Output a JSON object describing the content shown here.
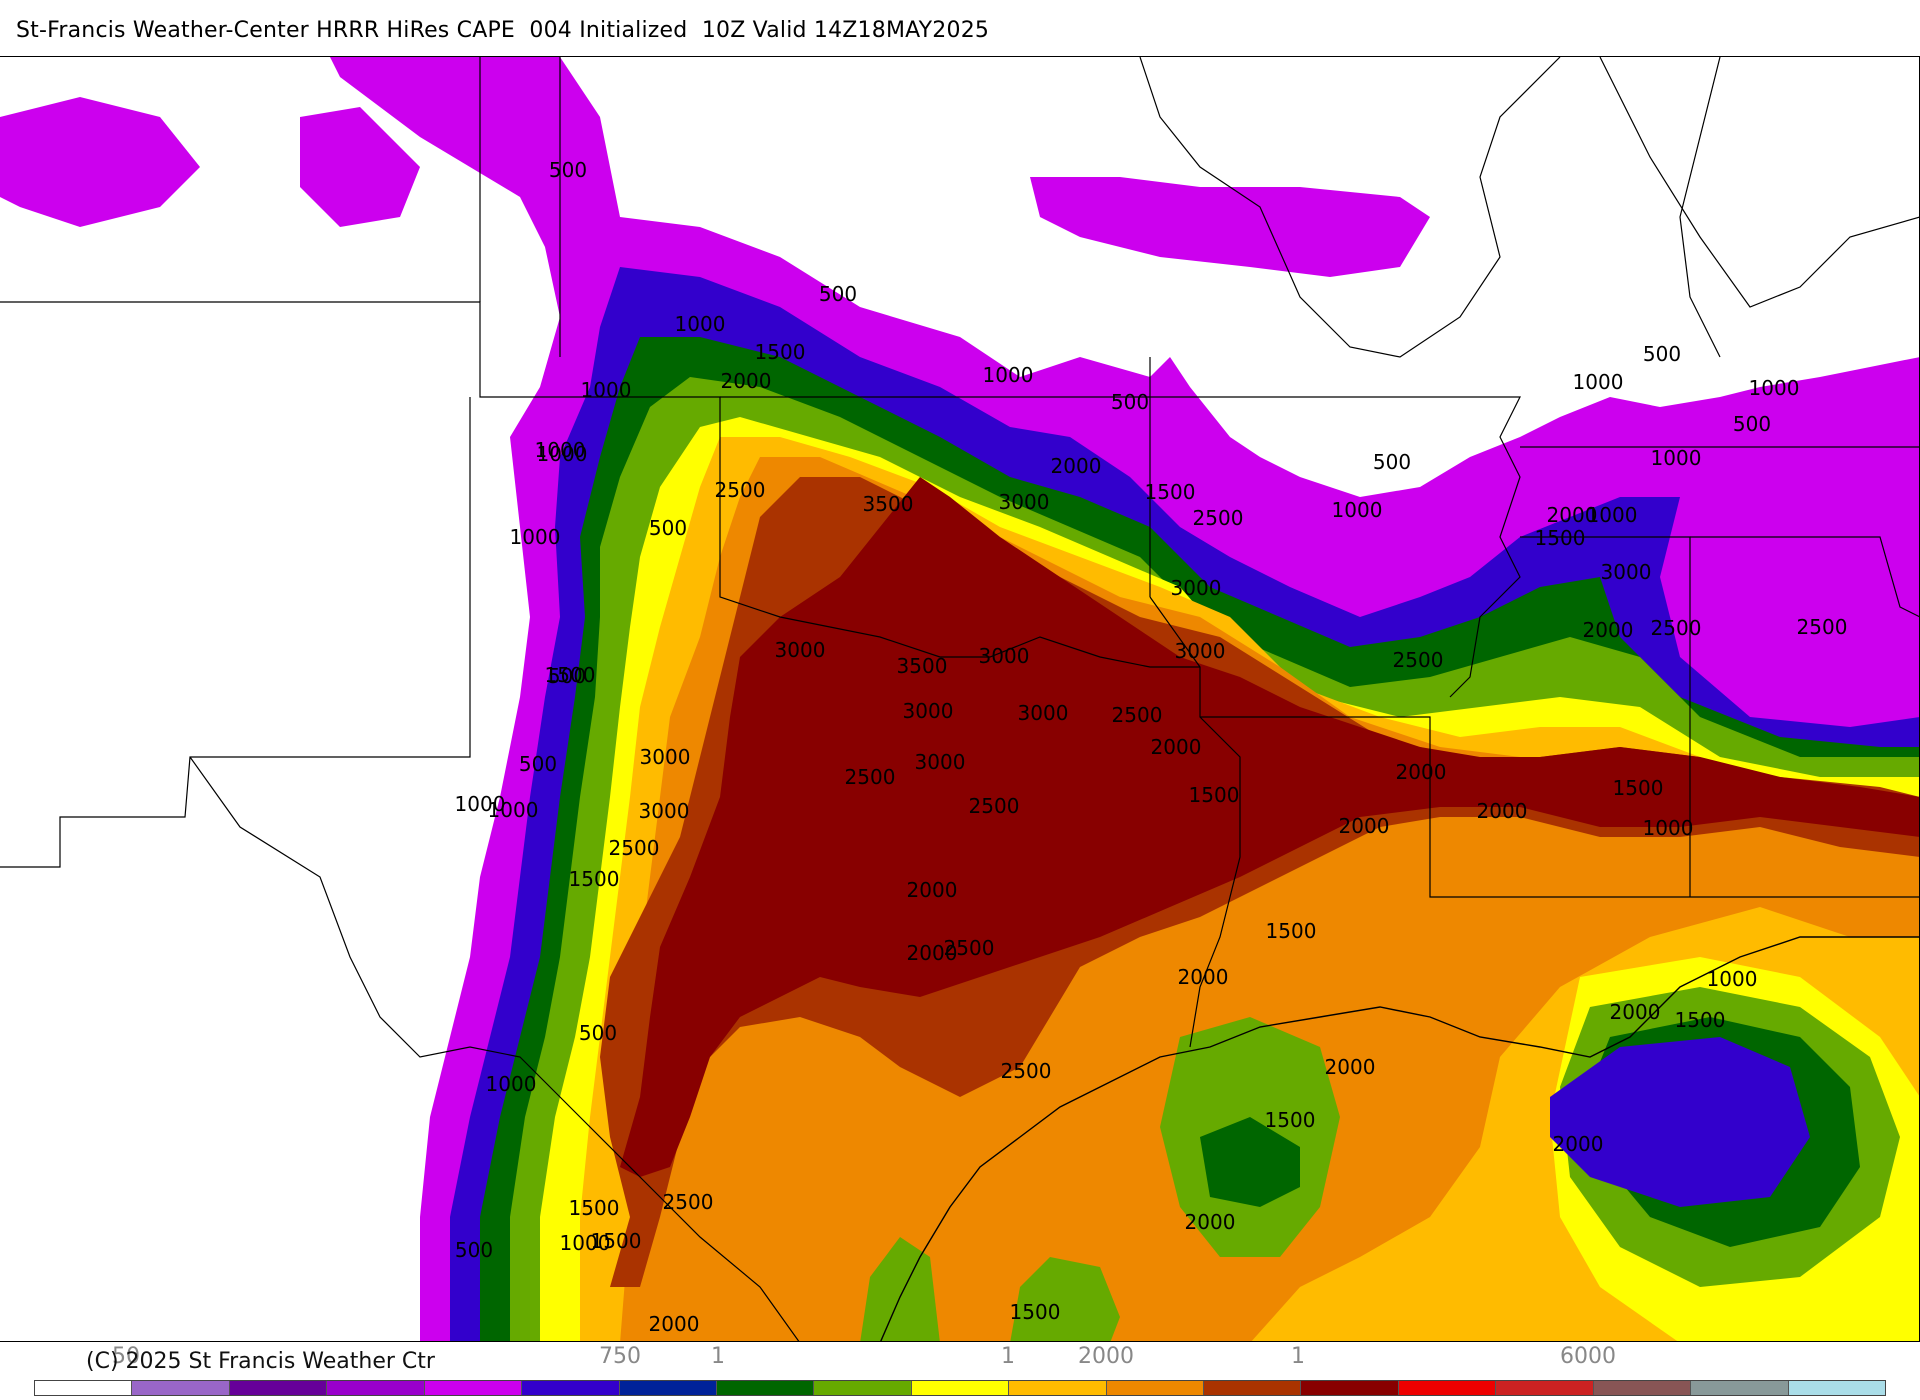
{
  "header": {
    "title": "St-Francis Weather-Center HRRR HiRes CAPE  004 Initialized  10Z Valid 14Z18MAY2025"
  },
  "footer": {
    "copyright": "(C) 2025 St Francis Weather Ctr"
  },
  "legend": {
    "tick_labels": [
      "50",
      "750",
      "1",
      "1",
      "2000",
      "1",
      "6000"
    ],
    "colors": [
      "#ffffff",
      "#9966c8",
      "#660099",
      "#9900cc",
      "#cc00ee",
      "#3300cc",
      "#002299",
      "#006600",
      "#66aa00",
      "#ffff00",
      "#ffbb00",
      "#ee8800",
      "#aa3300",
      "#880000",
      "#ee0000",
      "#cc2222",
      "#885555",
      "#889999",
      "#aadde8"
    ]
  },
  "map": {
    "palette": {
      "purple": "#cc00ee",
      "dark_purple": "#7a2a9a",
      "blue": "#3300cc",
      "navy": "#002299",
      "dark_green": "#006600",
      "green": "#66aa00",
      "yellow": "#ffff00",
      "gold": "#ffbb00",
      "orange": "#ee8800",
      "rust": "#aa3300",
      "maroon": "#880000"
    },
    "contour_labels": [
      "500",
      "1000",
      "1500",
      "2000",
      "2500",
      "3000",
      "3500"
    ]
  }
}
